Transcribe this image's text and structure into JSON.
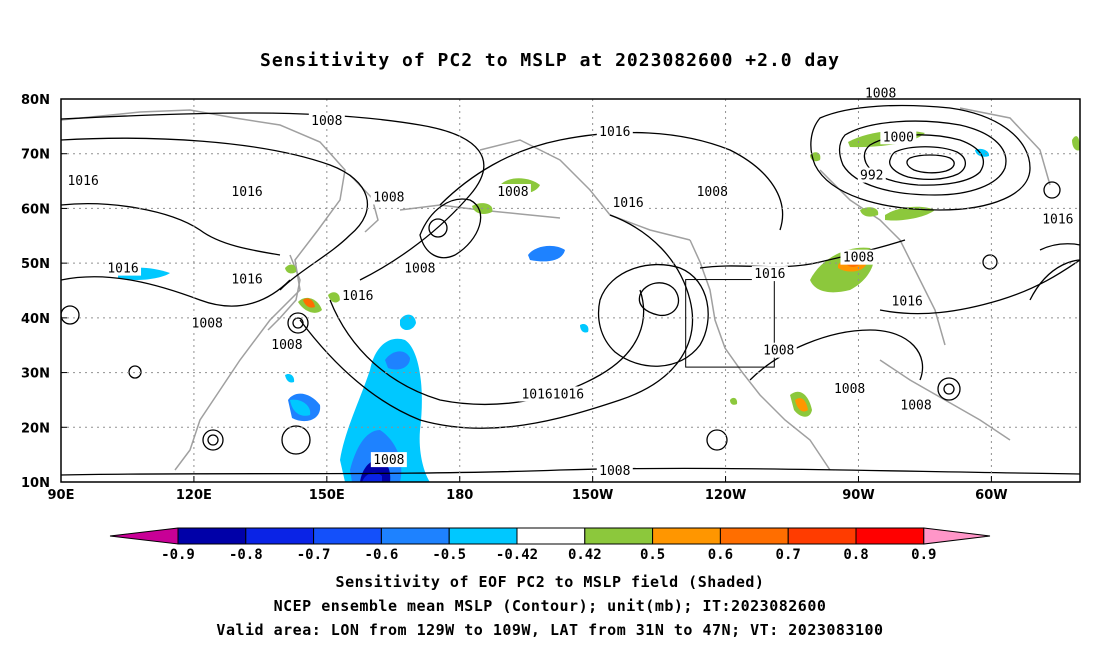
{
  "title": "Sensitivity of PC2 to MSLP at 2023082600 +2.0 day",
  "lat_labels": [
    "80N",
    "70N",
    "60N",
    "50N",
    "40N",
    "30N",
    "20N",
    "10N"
  ],
  "lat_values": [
    80,
    70,
    60,
    50,
    40,
    30,
    20,
    10
  ],
  "lon_labels": [
    "90E",
    "120E",
    "150E",
    "180",
    "150W",
    "120W",
    "90W",
    "60W"
  ],
  "lon_values": [
    90,
    120,
    150,
    180,
    210,
    240,
    270,
    300
  ],
  "map_extent": {
    "lon_min": 90,
    "lon_max": 320,
    "lat_min": 10,
    "lat_max": 80
  },
  "valid_box": {
    "lon_from": 231,
    "lon_to": 251,
    "lat_from": 31,
    "lat_to": 47
  },
  "contour_labels": [
    {
      "text": "1008",
      "lon": 150,
      "lat": 76
    },
    {
      "text": "1016",
      "lon": 95,
      "lat": 65
    },
    {
      "text": "1016",
      "lon": 132,
      "lat": 63
    },
    {
      "text": "1008",
      "lon": 164,
      "lat": 62
    },
    {
      "text": "1008",
      "lon": 171,
      "lat": 49
    },
    {
      "text": "1008",
      "lon": 192,
      "lat": 63
    },
    {
      "text": "1016",
      "lon": 218,
      "lat": 61
    },
    {
      "text": "1016",
      "lon": 215,
      "lat": 74
    },
    {
      "text": "1008",
      "lon": 237,
      "lat": 63
    },
    {
      "text": "1008",
      "lon": 275,
      "lat": 81
    },
    {
      "text": "1000",
      "lon": 279,
      "lat": 73
    },
    {
      "text": "992",
      "lon": 273,
      "lat": 66
    },
    {
      "text": "1016",
      "lon": 104,
      "lat": 49
    },
    {
      "text": "1016",
      "lon": 132,
      "lat": 47
    },
    {
      "text": "1016",
      "lon": 157,
      "lat": 44
    },
    {
      "text": "1008",
      "lon": 123,
      "lat": 39
    },
    {
      "text": "1008",
      "lon": 141,
      "lat": 35
    },
    {
      "text": "10161016",
      "lon": 201,
      "lat": 26
    },
    {
      "text": "1016",
      "lon": 250,
      "lat": 48
    },
    {
      "text": "1008",
      "lon": 270,
      "lat": 51
    },
    {
      "text": "1016",
      "lon": 281,
      "lat": 43
    },
    {
      "text": "1016",
      "lon": 315,
      "lat": 58
    },
    {
      "text": "1008",
      "lon": 252,
      "lat": 34
    },
    {
      "text": "1008",
      "lon": 268,
      "lat": 27
    },
    {
      "text": "1008",
      "lon": 283,
      "lat": 24
    },
    {
      "text": "1008",
      "lon": 164,
      "lat": 14
    },
    {
      "text": "1008",
      "lon": 215,
      "lat": 12
    }
  ],
  "colorbar": {
    "labels": [
      "-0.9",
      "-0.8",
      "-0.7",
      "-0.6",
      "-0.5",
      "-0.42",
      "0.42",
      "0.5",
      "0.6",
      "0.7",
      "0.8",
      "0.9"
    ],
    "colors": [
      "#0000a8",
      "#0a23e6",
      "#1450fa",
      "#1e82ff",
      "#00c8ff",
      "#ffffff",
      "#8cc83c",
      "#ff9600",
      "#ff6e00",
      "#ff3c00",
      "#ff0000"
    ],
    "low_extend_color": "#c80096",
    "high_extend_color": "#ff96c8"
  },
  "footer": {
    "line1": "Sensitivity of EOF PC2 to MSLP field (Shaded)",
    "line2": "NCEP ensemble mean MSLP (Contour); unit(mb); IT:2023082600",
    "line3": "Valid area: LON from 129W to 109W, LAT from 31N to 47N; VT: 2023083100"
  }
}
